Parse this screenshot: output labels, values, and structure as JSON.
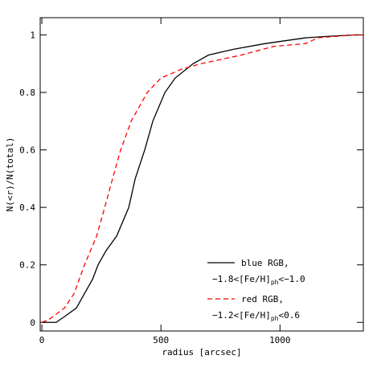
{
  "chart_data": {
    "type": "line",
    "x_label": "radius [arcsec]",
    "y_label": "N(<r)/N(total)",
    "xlim": [
      -7,
      1350
    ],
    "ylim": [
      -0.03,
      1.06
    ],
    "xticks": [
      0,
      500,
      1000
    ],
    "yticks": [
      0,
      0.2,
      0.4,
      0.6,
      0.8,
      1
    ],
    "series": [
      {
        "name": "blue RGB,",
        "label_parts": [
          "−1.8<[Fe/H]",
          "ph",
          "<−1.0"
        ],
        "color": "#000000",
        "dash": "solid",
        "x": [
          0,
          60,
          95,
          145,
          179,
          213,
          236,
          270,
          314,
          365,
          392,
          432,
          466,
          517,
          560,
          635,
          700,
          804,
          939,
          1108,
          1200,
          1311,
          1350
        ],
        "values": [
          0,
          0,
          0.02,
          0.05,
          0.1,
          0.15,
          0.2,
          0.25,
          0.3,
          0.4,
          0.5,
          0.6,
          0.7,
          0.8,
          0.85,
          0.9,
          0.93,
          0.95,
          0.97,
          0.99,
          0.995,
          1,
          1
        ]
      },
      {
        "name": "red RGB,",
        "label_parts": [
          "−1.2<[Fe/H]",
          "ph",
          "<0.6"
        ],
        "color": "#ff0000",
        "dash": "dashed",
        "x": [
          0,
          30,
          95,
          135,
          179,
          230,
          264,
          297,
          331,
          375,
          443,
          500,
          584,
          669,
          838,
          973,
          1108,
          1159,
          1311,
          1350
        ],
        "values": [
          0,
          0.01,
          0.05,
          0.1,
          0.2,
          0.3,
          0.4,
          0.5,
          0.6,
          0.7,
          0.8,
          0.85,
          0.88,
          0.9,
          0.93,
          0.96,
          0.97,
          0.99,
          1,
          1
        ]
      }
    ]
  }
}
